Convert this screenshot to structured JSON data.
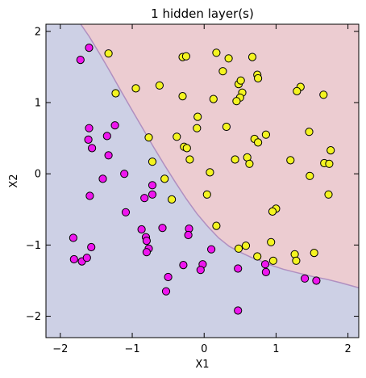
{
  "chart_data": {
    "type": "scatter",
    "title": "1 hidden layer(s)",
    "xlabel": "X1",
    "ylabel": "X2",
    "xlim": [
      -2.2,
      2.15
    ],
    "ylim": [
      -2.3,
      2.1
    ],
    "xticks": [
      -2,
      -1,
      0,
      1,
      2
    ],
    "yticks": [
      -2,
      -1,
      0,
      1,
      2
    ],
    "xtick_labels": [
      "−2",
      "−1",
      "0",
      "1",
      "2"
    ],
    "ytick_labels": [
      "−2",
      "−1",
      "0",
      "1",
      "2"
    ],
    "grid": false,
    "regions": [
      {
        "class": "class_1",
        "color": "#ecccd1"
      },
      {
        "class": "class_0",
        "color": "#cdd0e5"
      }
    ],
    "boundary": {
      "color": "#b08fc0",
      "x": [
        -1.75,
        -1.6,
        -1.45,
        -1.3,
        -1.15,
        -1.0,
        -0.85,
        -0.7,
        -0.55,
        -0.4,
        -0.25,
        -0.1,
        0.05,
        0.2,
        0.35,
        0.5,
        0.65,
        0.8,
        0.95,
        1.1,
        1.3,
        1.5,
        1.7,
        1.9,
        2.15
      ],
      "y": [
        2.15,
        1.93,
        1.68,
        1.42,
        1.15,
        0.89,
        0.63,
        0.37,
        0.12,
        -0.12,
        -0.35,
        -0.56,
        -0.74,
        -0.9,
        -1.02,
        -1.1,
        -1.17,
        -1.23,
        -1.29,
        -1.34,
        -1.39,
        -1.44,
        -1.48,
        -1.53,
        -1.6
      ]
    },
    "series": [
      {
        "color": "#ee16ee",
        "points": [
          [
            -1.6,
            1.77
          ],
          [
            -1.72,
            1.6
          ],
          [
            -1.6,
            0.64
          ],
          [
            -1.24,
            0.68
          ],
          [
            -1.35,
            0.53
          ],
          [
            -1.61,
            0.48
          ],
          [
            -1.56,
            0.36
          ],
          [
            -1.33,
            0.26
          ],
          [
            -1.41,
            -0.07
          ],
          [
            -1.11,
            0.0
          ],
          [
            -1.59,
            -0.31
          ],
          [
            -0.83,
            -0.34
          ],
          [
            -0.72,
            -0.16
          ],
          [
            -0.72,
            -0.29
          ],
          [
            -1.09,
            -0.54
          ],
          [
            -0.87,
            -0.78
          ],
          [
            -0.81,
            -0.89
          ],
          [
            -0.8,
            -0.94
          ],
          [
            -0.77,
            -1.05
          ],
          [
            -0.8,
            -1.1
          ],
          [
            -0.58,
            -0.76
          ],
          [
            -0.21,
            -0.77
          ],
          [
            -0.22,
            -0.86
          ],
          [
            -0.29,
            -1.28
          ],
          [
            -0.02,
            -1.27
          ],
          [
            -0.05,
            -1.35
          ],
          [
            0.1,
            -1.06
          ],
          [
            -0.5,
            -1.45
          ],
          [
            -0.53,
            -1.65
          ],
          [
            -1.82,
            -0.9
          ],
          [
            -1.81,
            -1.2
          ],
          [
            -1.7,
            -1.23
          ],
          [
            -1.63,
            -1.18
          ],
          [
            -1.57,
            -1.03
          ],
          [
            0.47,
            -1.33
          ],
          [
            0.85,
            -1.27
          ],
          [
            0.86,
            -1.38
          ],
          [
            1.4,
            -1.47
          ],
          [
            1.56,
            -1.5
          ],
          [
            0.47,
            -1.92
          ]
        ]
      },
      {
        "color": "#f4f421",
        "points": [
          [
            -1.33,
            1.69
          ],
          [
            -1.23,
            1.13
          ],
          [
            -0.95,
            1.2
          ],
          [
            -0.62,
            1.24
          ],
          [
            -0.3,
            1.64
          ],
          [
            -0.25,
            1.65
          ],
          [
            0.17,
            1.7
          ],
          [
            0.34,
            1.62
          ],
          [
            0.67,
            1.64
          ],
          [
            0.26,
            1.44
          ],
          [
            0.48,
            1.26
          ],
          [
            0.51,
            1.31
          ],
          [
            0.74,
            1.39
          ],
          [
            0.75,
            1.34
          ],
          [
            0.53,
            1.14
          ],
          [
            0.5,
            1.07
          ],
          [
            0.45,
            1.02
          ],
          [
            0.13,
            1.05
          ],
          [
            -0.3,
            1.09
          ],
          [
            1.34,
            1.22
          ],
          [
            1.29,
            1.16
          ],
          [
            1.66,
            1.11
          ],
          [
            1.46,
            0.59
          ],
          [
            0.86,
            0.55
          ],
          [
            0.7,
            0.49
          ],
          [
            0.75,
            0.44
          ],
          [
            0.31,
            0.66
          ],
          [
            -0.09,
            0.8
          ],
          [
            -0.1,
            0.64
          ],
          [
            -0.38,
            0.52
          ],
          [
            -0.77,
            0.51
          ],
          [
            -0.28,
            0.38
          ],
          [
            -0.24,
            0.36
          ],
          [
            -0.2,
            0.2
          ],
          [
            -0.72,
            0.17
          ],
          [
            0.43,
            0.2
          ],
          [
            0.6,
            0.23
          ],
          [
            0.63,
            0.14
          ],
          [
            0.08,
            0.02
          ],
          [
            -0.55,
            -0.07
          ],
          [
            0.04,
            -0.29
          ],
          [
            -0.45,
            -0.36
          ],
          [
            1.2,
            0.19
          ],
          [
            1.67,
            0.15
          ],
          [
            1.74,
            0.14
          ],
          [
            1.76,
            0.33
          ],
          [
            1.47,
            -0.03
          ],
          [
            1.73,
            -0.29
          ],
          [
            1.0,
            -0.49
          ],
          [
            0.95,
            -0.53
          ],
          [
            0.17,
            -0.73
          ],
          [
            0.48,
            -1.05
          ],
          [
            0.58,
            -1.01
          ],
          [
            0.93,
            -0.96
          ],
          [
            0.74,
            -1.16
          ],
          [
            0.96,
            -1.22
          ],
          [
            1.26,
            -1.13
          ],
          [
            1.28,
            -1.22
          ],
          [
            1.53,
            -1.11
          ]
        ]
      }
    ]
  }
}
